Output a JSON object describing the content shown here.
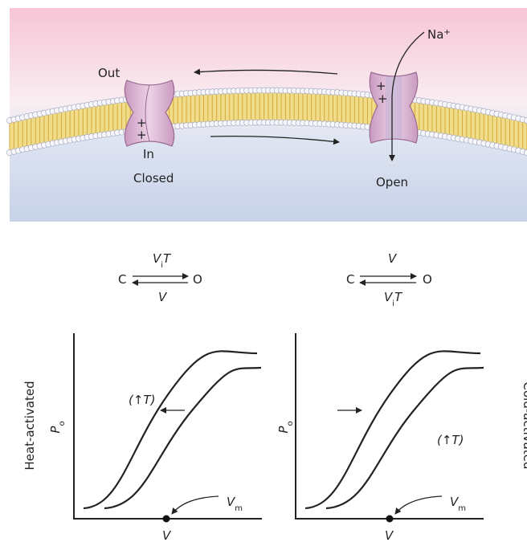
{
  "membrane": {
    "outside_label": "Out",
    "inside_label": "In",
    "ion": {
      "symbol": "Na",
      "charge": "+"
    },
    "channels": [
      {
        "label": "Closed",
        "charges": [
          "+",
          "+"
        ]
      },
      {
        "label": "Open",
        "charges": [
          "+",
          "+"
        ]
      }
    ]
  },
  "schemes": [
    {
      "closed": "C",
      "open": "O",
      "forward": {
        "base": "V",
        "sub": "i",
        "extra": "T"
      },
      "backward": {
        "base": "V"
      }
    },
    {
      "closed": "C",
      "open": "O",
      "forward": {
        "base": "V"
      },
      "backward": {
        "base": "V",
        "sub": "i",
        "extra": "T"
      }
    }
  ],
  "plots": [
    {
      "side_label": "Heat-activated",
      "y_label": {
        "base": "P",
        "sub": "o"
      },
      "x_label": "V",
      "marker_label": {
        "base": "V",
        "sub": "m"
      },
      "annotation": "(↑T)"
    },
    {
      "side_label": "Cold-activated",
      "y_label": {
        "base": "P",
        "sub": "o"
      },
      "x_label": "V",
      "marker_label": {
        "base": "V",
        "sub": "m"
      },
      "annotation": "(↑T)"
    }
  ]
}
